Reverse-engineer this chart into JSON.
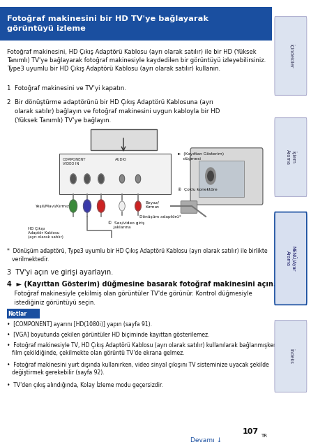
{
  "title": "Fotoğraf makinesini bir HD TV'ye bağlayarak\ngörüntüyü izleme",
  "title_bg": "#1a4fa0",
  "title_fg": "#ffffff",
  "body_text_1": "Fotoğraf makinesini, HD Çıkış Adaptörü Kablosu (ayrı olarak satılır) ile bir HD (Yüksek\nTanımlı) TV'ye bağlayarak fotoğraf makinesiyle kaydedilen bir görüntüyü izleyebilirsiniz.\nType3 uyumlu bir HD Çıkış Adaptörü Kablosu (ayrı olarak satılır) kullanın.",
  "step1": "1  Fotoğraf makinesini ve TV'yi kapatın.",
  "step2_line1": "2  Bir dönüştürme adaptörünü bir HD Çıkış Adaptörü Kablosuna (ayrı",
  "step2_line2": "    olarak satılır) bağlayın ve fotoğraf makinesini uygun kabloyla bir HD",
  "step2_line3": "    (Yüksek Tanımlı) TV'ye bağlayın.",
  "footnote": "*  Dönüşüm adaptörü, Type3 uyumlu bir HD Çıkış Adaptörü Kablosu (ayrı olarak satılır) ile birlikte\n   verilmektedir.",
  "step3": "3  TV'yi açın ve girişi ayarlayın.",
  "step4": "4  ► (Kayıttan Gösterim) düğmesine basarak fotoğraf makinesini açın.",
  "step4b_1": "    Fotoğraf makinesiyle çekilmiş olan görüntüler TV'de görünür. Kontrol düğmesiyle",
  "step4b_2": "    istediğiniz görüntüyü seçin.",
  "notlar_title": "Notlar",
  "notlar_bg": "#1a4fa0",
  "notlar_fg": "#ffffff",
  "notes": [
    "•  [COMPONENT] ayarını [HD(1080i)] yapın (sayfa 91).",
    "•  [VGA] boyutunda çekilen görüntüler HD biçiminde kayıttan gösterilemez.",
    "•  Fotoğraf makinesiyle TV, HD Çıkış Adaptörü Kablosu (ayrı olarak satılır) kullanılarak bağlanmışken\n   film çekildiğinde, çekilmekte olan görüntü TV'de ekrana gelmez.",
    "•  Fotoğraf makinesini yurt dışında kullanırken, video sinyal çıkışını TV sisteminize uyacak şekilde\n   değiştirmek gerekebilir (sayfa 92).",
    "•  TV'den çıkış alındığında, Kolay İzleme modu geçersizdir."
  ],
  "page_num": "107",
  "page_sup": "TR",
  "devami": "Devamı ↓",
  "sidebar_labels": [
    "İçindekiler",
    "İşlem Arama",
    "MENÜ/Ayar\nArama",
    "İndeks"
  ],
  "bg_color": "#ffffff",
  "sidebar_tab_color": "#dce3f0",
  "sidebar_border_color": "#aaaacc"
}
